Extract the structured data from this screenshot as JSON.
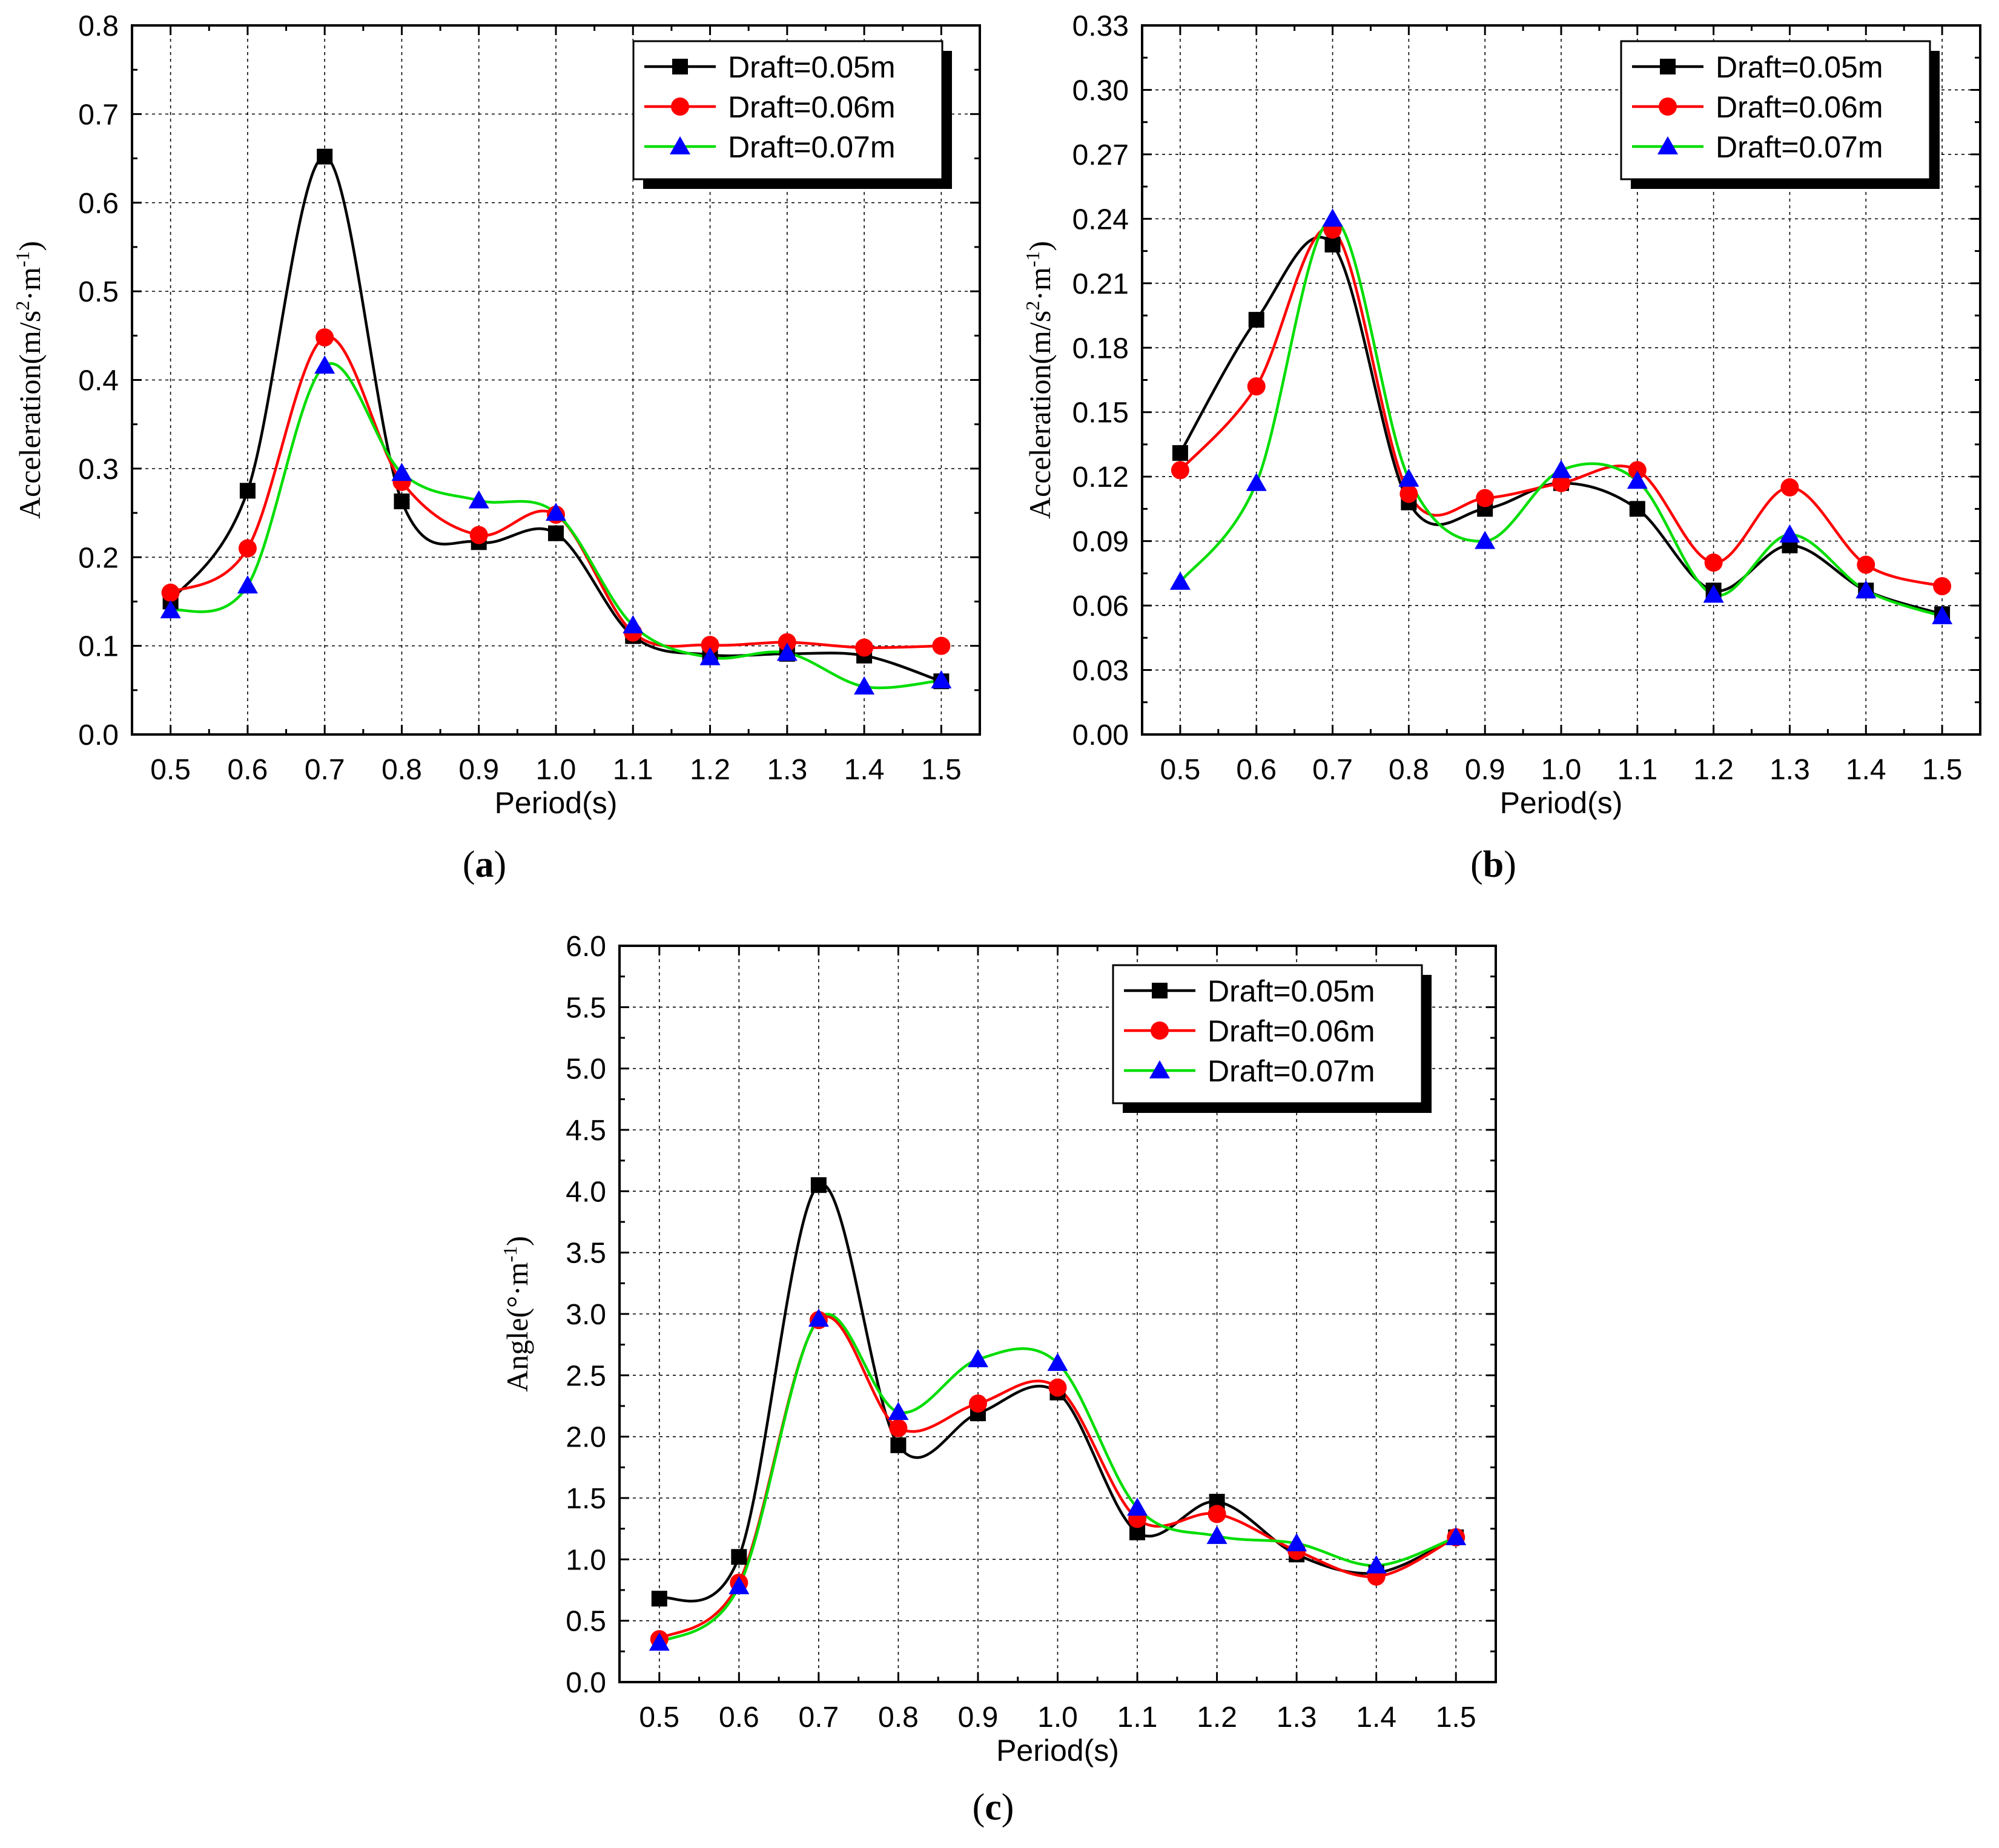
{
  "figure": {
    "panel_labels": [
      "(a)",
      "(b)",
      "(c)"
    ],
    "label_letters": [
      "a",
      "b",
      "c"
    ]
  },
  "colors": {
    "series": [
      "#000000",
      "#ff0000",
      "#00dd00"
    ],
    "markers": [
      "#000000",
      "#ff0000",
      "#0000ff"
    ]
  },
  "chart_data": [
    {
      "type": "line",
      "panel": "(a)",
      "xlabel": "Period(s)",
      "ylabel": "Acceleration(m/s²·m⁻¹)",
      "ylabel_parts": [
        "Acceleration(m/s",
        "2",
        "·m",
        "-1",
        ")"
      ],
      "xlim": [
        0.45,
        1.55
      ],
      "ylim": [
        0,
        0.8
      ],
      "xticks": [
        "0.5",
        "0.6",
        "0.7",
        "0.8",
        "0.9",
        "1.0",
        "1.1",
        "1.2",
        "1.3",
        "1.4",
        "1.5"
      ],
      "yticks": [
        "0.0",
        "0.1",
        "0.2",
        "0.3",
        "0.4",
        "0.5",
        "0.6",
        "0.7",
        "0.8"
      ],
      "grid": true,
      "legend_position": "top-right",
      "x": [
        0.5,
        0.6,
        0.7,
        0.8,
        0.9,
        1.0,
        1.1,
        1.2,
        1.3,
        1.4,
        1.5
      ],
      "series": [
        {
          "name": "Draft=0.05m",
          "marker": "square",
          "values": [
            0.15,
            0.275,
            0.652,
            0.263,
            0.217,
            0.227,
            0.111,
            0.09,
            0.091,
            0.089,
            0.06
          ]
        },
        {
          "name": "Draft=0.06m",
          "marker": "circle",
          "values": [
            0.16,
            0.21,
            0.448,
            0.285,
            0.225,
            0.248,
            0.115,
            0.101,
            0.104,
            0.098,
            0.1
          ]
        },
        {
          "name": "Draft=0.07m",
          "marker": "triangle",
          "values": [
            0.14,
            0.168,
            0.416,
            0.295,
            0.264,
            0.25,
            0.123,
            0.087,
            0.092,
            0.054,
            0.061
          ]
        }
      ]
    },
    {
      "type": "line",
      "panel": "(b)",
      "xlabel": "Period(s)",
      "ylabel": "Acceleration(m/s²·m⁻¹)",
      "ylabel_parts": [
        "Acceleration(m/s",
        "2",
        "·m",
        "-1",
        ")"
      ],
      "xlim": [
        0.45,
        1.55
      ],
      "ylim": [
        0,
        0.33
      ],
      "xticks": [
        "0.5",
        "0.6",
        "0.7",
        "0.8",
        "0.9",
        "1.0",
        "1.1",
        "1.2",
        "1.3",
        "1.4",
        "1.5"
      ],
      "yticks": [
        "0.00",
        "0.03",
        "0.06",
        "0.09",
        "0.12",
        "0.15",
        "0.18",
        "0.21",
        "0.24",
        "0.27",
        "0.30",
        "0.33"
      ],
      "grid": true,
      "legend_position": "top-right",
      "x": [
        0.5,
        0.6,
        0.7,
        0.8,
        0.9,
        1.0,
        1.1,
        1.2,
        1.3,
        1.4,
        1.5
      ],
      "series": [
        {
          "name": "Draft=0.05m",
          "marker": "square",
          "values": [
            0.131,
            0.193,
            0.228,
            0.108,
            0.105,
            0.117,
            0.105,
            0.067,
            0.088,
            0.067,
            0.056
          ]
        },
        {
          "name": "Draft=0.06m",
          "marker": "circle",
          "values": [
            0.123,
            0.162,
            0.235,
            0.112,
            0.11,
            0.117,
            0.123,
            0.08,
            0.115,
            0.079,
            0.069
          ]
        },
        {
          "name": "Draft=0.07m",
          "marker": "triangle",
          "values": [
            0.071,
            0.117,
            0.24,
            0.119,
            0.09,
            0.123,
            0.118,
            0.065,
            0.093,
            0.067,
            0.055
          ]
        }
      ]
    },
    {
      "type": "line",
      "panel": "(c)",
      "xlabel": "Period(s)",
      "ylabel": "Angle(°·m⁻¹)",
      "ylabel_parts": [
        "Angle(°·m",
        "",
        "",
        "-1",
        ")"
      ],
      "xlim": [
        0.45,
        1.55
      ],
      "ylim": [
        0,
        6.0
      ],
      "xticks": [
        "0.5",
        "0.6",
        "0.7",
        "0.8",
        "0.9",
        "1.0",
        "1.1",
        "1.2",
        "1.3",
        "1.4",
        "1.5"
      ],
      "yticks": [
        "0.0",
        "0.5",
        "1.0",
        "1.5",
        "2.0",
        "2.5",
        "3.0",
        "3.5",
        "4.0",
        "4.5",
        "5.0",
        "5.5",
        "6.0"
      ],
      "grid": true,
      "legend_position": "top-right",
      "x": [
        0.5,
        0.6,
        0.7,
        0.8,
        0.9,
        1.0,
        1.1,
        1.2,
        1.3,
        1.4,
        1.5
      ],
      "series": [
        {
          "name": "Draft=0.05m",
          "marker": "square",
          "values": [
            0.68,
            1.02,
            4.05,
            1.93,
            2.19,
            2.36,
            1.22,
            1.47,
            1.04,
            0.89,
            1.18
          ]
        },
        {
          "name": "Draft=0.06m",
          "marker": "circle",
          "values": [
            0.35,
            0.81,
            2.95,
            2.07,
            2.27,
            2.4,
            1.33,
            1.37,
            1.07,
            0.86,
            1.18
          ]
        },
        {
          "name": "Draft=0.07m",
          "marker": "triangle",
          "values": [
            0.32,
            0.78,
            2.96,
            2.2,
            2.63,
            2.6,
            1.42,
            1.19,
            1.13,
            0.95,
            1.18
          ]
        }
      ]
    }
  ]
}
